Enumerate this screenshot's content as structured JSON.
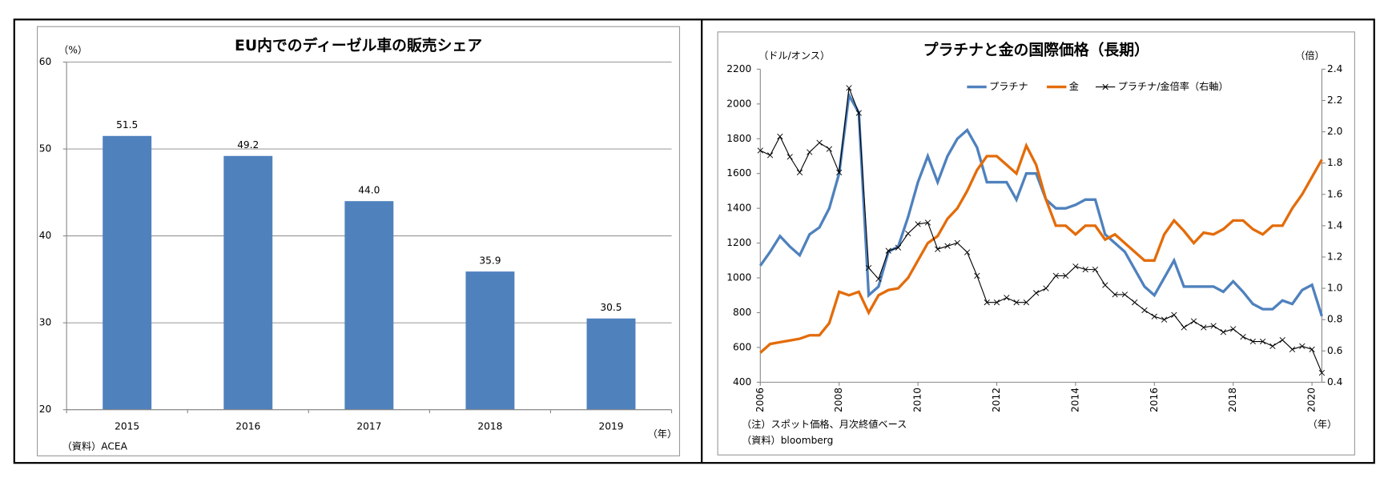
{
  "chart_data": [
    {
      "type": "bar",
      "title": "EU内でのディーゼル車の販売シェア",
      "y_unit": "（%）",
      "x_unit": "（年）",
      "source": "（資料）ACEA",
      "categories": [
        "2015",
        "2016",
        "2017",
        "2018",
        "2019"
      ],
      "values": [
        51.5,
        49.2,
        44.0,
        35.9,
        30.5
      ],
      "value_labels": [
        "51.5",
        "49.2",
        "44.0",
        "35.9",
        "30.5"
      ],
      "color": "#4f81bd",
      "ylim": [
        20,
        60
      ],
      "yticks": [
        20,
        30,
        40,
        50,
        60
      ],
      "grid": true
    },
    {
      "type": "line",
      "title": "プラチナと金の国際価格（長期）",
      "y_unit": "（ドル/オンス）",
      "y2_unit": "（倍）",
      "x_unit": "（年）",
      "note": "（注）スポット価格、月次終値ベース",
      "source": "（資料）bloomberg",
      "x": [
        2006,
        2006.25,
        2006.5,
        2006.75,
        2007,
        2007.25,
        2007.5,
        2007.75,
        2008,
        2008.25,
        2008.5,
        2008.75,
        2009,
        2009.25,
        2009.5,
        2009.75,
        2010,
        2010.25,
        2010.5,
        2010.75,
        2011,
        2011.25,
        2011.5,
        2011.75,
        2012,
        2012.25,
        2012.5,
        2012.75,
        2013,
        2013.25,
        2013.5,
        2013.75,
        2014,
        2014.25,
        2014.5,
        2014.75,
        2015,
        2015.25,
        2015.5,
        2015.75,
        2016,
        2016.25,
        2016.5,
        2016.75,
        2017,
        2017.25,
        2017.5,
        2017.75,
        2018,
        2018.25,
        2018.5,
        2018.75,
        2019,
        2019.25,
        2019.5,
        2019.75,
        2020,
        2020.25
      ],
      "series": [
        {
          "name": "プラチナ",
          "color": "#4f81bd",
          "marker": "none",
          "values": [
            1070,
            1150,
            1240,
            1180,
            1130,
            1250,
            1290,
            1400,
            1600,
            2050,
            1950,
            900,
            950,
            1150,
            1180,
            1350,
            1550,
            1700,
            1550,
            1700,
            1800,
            1850,
            1750,
            1550,
            1550,
            1550,
            1450,
            1600,
            1600,
            1450,
            1400,
            1400,
            1420,
            1450,
            1450,
            1250,
            1200,
            1150,
            1050,
            950,
            900,
            1000,
            1100,
            950,
            950,
            950,
            950,
            920,
            980,
            920,
            850,
            820,
            820,
            870,
            850,
            930,
            960,
            780
          ]
        },
        {
          "name": "金",
          "color": "#e36c0a",
          "marker": "none",
          "values": [
            570,
            620,
            630,
            640,
            650,
            670,
            670,
            740,
            920,
            900,
            920,
            800,
            900,
            930,
            940,
            1000,
            1100,
            1200,
            1240,
            1340,
            1400,
            1500,
            1620,
            1700,
            1700,
            1650,
            1600,
            1760,
            1650,
            1450,
            1300,
            1300,
            1250,
            1300,
            1300,
            1220,
            1250,
            1200,
            1150,
            1100,
            1100,
            1250,
            1330,
            1270,
            1200,
            1260,
            1250,
            1280,
            1330,
            1330,
            1280,
            1250,
            1300,
            1300,
            1400,
            1480,
            1580,
            1680
          ]
        },
        {
          "name": "プラチナ/金倍率（右軸）",
          "color": "#000000",
          "marker": "x",
          "axis": "y2",
          "values": [
            1.88,
            1.85,
            1.97,
            1.84,
            1.74,
            1.87,
            1.93,
            1.89,
            1.74,
            2.28,
            2.12,
            1.13,
            1.06,
            1.24,
            1.26,
            1.35,
            1.41,
            1.42,
            1.25,
            1.27,
            1.29,
            1.23,
            1.08,
            0.91,
            0.91,
            0.94,
            0.91,
            0.91,
            0.97,
            1.0,
            1.08,
            1.08,
            1.14,
            1.12,
            1.12,
            1.02,
            0.96,
            0.96,
            0.91,
            0.86,
            0.82,
            0.8,
            0.83,
            0.75,
            0.79,
            0.75,
            0.76,
            0.72,
            0.74,
            0.69,
            0.66,
            0.66,
            0.63,
            0.67,
            0.61,
            0.63,
            0.61,
            0.46
          ]
        }
      ],
      "xlim": [
        2006,
        2020.25
      ],
      "xticks": [
        2006,
        2008,
        2010,
        2012,
        2014,
        2016,
        2018,
        2020
      ],
      "ylim": [
        400,
        2200
      ],
      "yticks": [
        400,
        600,
        800,
        1000,
        1200,
        1400,
        1600,
        1800,
        2000,
        2200
      ],
      "y2lim": [
        0.4,
        2.4
      ],
      "y2ticks": [
        0.4,
        0.6,
        0.8,
        {
          "value": 1.0,
          "label": "1.0"
        },
        1.2,
        1.4,
        1.6,
        1.8,
        {
          "value": 2.0,
          "label": "2.0"
        },
        2.2,
        2.4
      ],
      "legend": "top",
      "grid": false
    }
  ]
}
